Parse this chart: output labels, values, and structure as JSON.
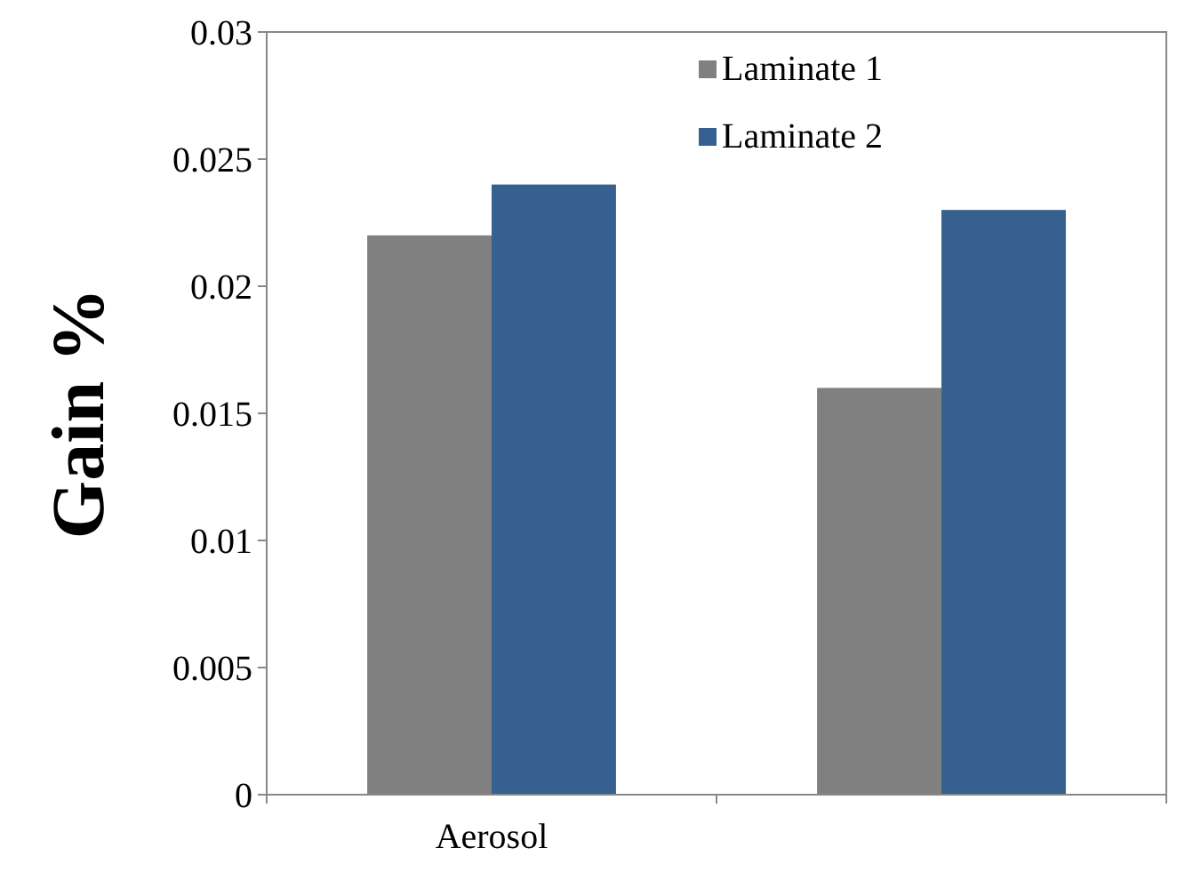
{
  "chart_data": {
    "type": "bar",
    "ylabel": "Gain %",
    "categories": [
      "Aerosol",
      null
    ],
    "series": [
      {
        "name": "Laminate 1",
        "color": "#808080",
        "values": [
          0.022,
          0.016
        ]
      },
      {
        "name": "Laminate 2",
        "color": "#35608f",
        "values": [
          0.024,
          0.023
        ]
      }
    ],
    "ylim": [
      0,
      0.03
    ],
    "yticks": [
      0,
      0.005,
      0.01,
      0.015,
      0.02,
      0.025,
      0.03
    ],
    "grid": false,
    "legend": "top right"
  }
}
